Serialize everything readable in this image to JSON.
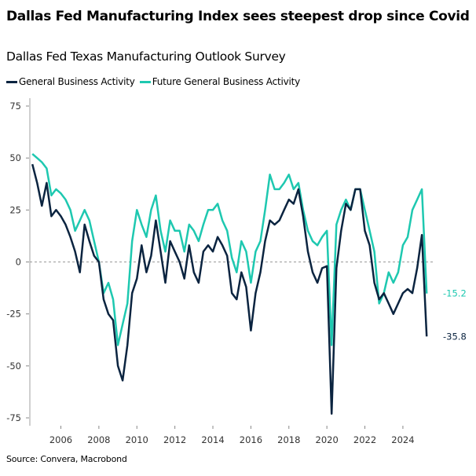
{
  "chart_data": {
    "type": "line",
    "title": "Dallas Fed Manufacturing Index sees steepest drop since Covid",
    "subtitle": "Dallas Fed Texas Manufacturing Outlook Survey",
    "source": "Source: Convera, Macrobond",
    "xlim": [
      2004.5,
      2025.3
    ],
    "ylim": [
      -75,
      75
    ],
    "yticks": [
      75,
      50,
      25,
      0,
      -25,
      -50,
      -75
    ],
    "xticks": [
      2006,
      2008,
      2010,
      2012,
      2014,
      2016,
      2018,
      2020,
      2022,
      2024
    ],
    "zero_line": "dashed",
    "legend_position": "top-left",
    "x": [
      2004.5,
      2004.75,
      2005,
      2005.25,
      2005.5,
      2005.75,
      2006,
      2006.25,
      2006.5,
      2006.75,
      2007,
      2007.25,
      2007.5,
      2007.75,
      2008,
      2008.25,
      2008.5,
      2008.75,
      2009,
      2009.25,
      2009.5,
      2009.75,
      2010,
      2010.25,
      2010.5,
      2010.75,
      2011,
      2011.25,
      2011.5,
      2011.75,
      2012,
      2012.25,
      2012.5,
      2012.75,
      2013,
      2013.25,
      2013.5,
      2013.75,
      2014,
      2014.25,
      2014.5,
      2014.75,
      2015,
      2015.25,
      2015.5,
      2015.75,
      2016,
      2016.25,
      2016.5,
      2016.75,
      2017,
      2017.25,
      2017.5,
      2017.75,
      2018,
      2018.25,
      2018.5,
      2018.75,
      2019,
      2019.25,
      2019.5,
      2019.75,
      2020,
      2020.25,
      2020.5,
      2020.75,
      2021,
      2021.25,
      2021.5,
      2021.75,
      2022,
      2022.25,
      2022.5,
      2022.75,
      2023,
      2023.25,
      2023.5,
      2023.75,
      2024,
      2024.25,
      2024.5,
      2024.75,
      2025,
      2025.25
    ],
    "series": [
      {
        "name": "General Business Activity",
        "color": "#0b2440",
        "end_label": "-35.8",
        "values": [
          47,
          38,
          27,
          38,
          22,
          25,
          22,
          18,
          12,
          5,
          -5,
          18,
          10,
          3,
          0,
          -18,
          -25,
          -28,
          -50,
          -57,
          -40,
          -15,
          -8,
          8,
          -5,
          3,
          20,
          5,
          -10,
          10,
          5,
          0,
          -8,
          8,
          -5,
          -10,
          5,
          8,
          5,
          12,
          8,
          3,
          -15,
          -18,
          -5,
          -12,
          -33,
          -15,
          -5,
          10,
          20,
          18,
          20,
          25,
          30,
          28,
          35,
          22,
          5,
          -5,
          -10,
          -3,
          -2,
          -73,
          -3,
          15,
          28,
          25,
          35,
          35,
          15,
          8,
          -10,
          -18,
          -15,
          -20,
          -25,
          -20,
          -15,
          -13,
          -15,
          -3,
          13,
          -35.8
        ]
      },
      {
        "name": "Future General Business Activity",
        "color": "#1ec8b0",
        "end_label": "-15.2",
        "values": [
          52,
          50,
          48,
          45,
          32,
          35,
          33,
          30,
          25,
          15,
          20,
          25,
          20,
          10,
          0,
          -15,
          -10,
          -18,
          -40,
          -30,
          -20,
          10,
          25,
          18,
          12,
          25,
          32,
          15,
          5,
          20,
          15,
          15,
          5,
          18,
          15,
          10,
          18,
          25,
          25,
          28,
          20,
          15,
          2,
          -5,
          10,
          5,
          -10,
          5,
          10,
          25,
          42,
          35,
          35,
          38,
          42,
          35,
          38,
          25,
          15,
          10,
          8,
          12,
          15,
          -40,
          18,
          25,
          30,
          25,
          35,
          35,
          25,
          15,
          5,
          -20,
          -15,
          -5,
          -10,
          -5,
          8,
          12,
          25,
          30,
          35,
          -15.2
        ]
      }
    ]
  }
}
